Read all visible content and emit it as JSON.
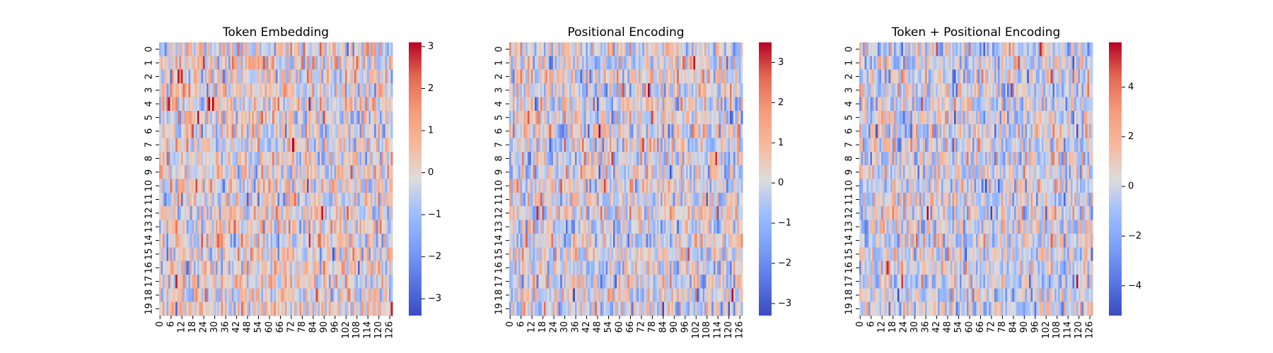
{
  "chart_data": [
    {
      "type": "heatmap",
      "title": "Token Embedding",
      "rows": 20,
      "cols": 128,
      "x_tick_labels": [
        "0",
        "6",
        "12",
        "18",
        "24",
        "30",
        "36",
        "42",
        "48",
        "54",
        "60",
        "66",
        "72",
        "78",
        "84",
        "90",
        "96",
        "102",
        "108",
        "114",
        "120",
        "126"
      ],
      "y_tick_labels": [
        "0",
        "1",
        "2",
        "3",
        "4",
        "5",
        "6",
        "7",
        "8",
        "9",
        "10",
        "11",
        "12",
        "13",
        "14",
        "15",
        "16",
        "17",
        "18",
        "19"
      ],
      "colormap": "coolwarm",
      "vmin": -3.4,
      "vmax": 3.1,
      "colorbar_ticks": [
        -3,
        -2,
        -1,
        0,
        1,
        2,
        3
      ],
      "colorbar_tick_labels": [
        "−3",
        "−2",
        "−1",
        "0",
        "1",
        "2",
        "3"
      ],
      "seed": 11
    },
    {
      "type": "heatmap",
      "title": "Positional Encoding",
      "rows": 20,
      "cols": 128,
      "x_tick_labels": [
        "0",
        "6",
        "12",
        "18",
        "24",
        "30",
        "36",
        "42",
        "48",
        "54",
        "60",
        "66",
        "72",
        "78",
        "84",
        "90",
        "96",
        "102",
        "108",
        "114",
        "120",
        "126"
      ],
      "y_tick_labels": [
        "0",
        "1",
        "2",
        "3",
        "4",
        "5",
        "6",
        "7",
        "8",
        "9",
        "10",
        "11",
        "12",
        "13",
        "14",
        "15",
        "16",
        "17",
        "18",
        "19"
      ],
      "colormap": "coolwarm",
      "vmin": -3.3,
      "vmax": 3.5,
      "colorbar_ticks": [
        -3,
        -2,
        -1,
        0,
        1,
        2,
        3
      ],
      "colorbar_tick_labels": [
        "−3",
        "−2",
        "−1",
        "0",
        "1",
        "2",
        "3"
      ],
      "seed": 23
    },
    {
      "type": "heatmap",
      "title": "Token + Positional Encoding",
      "rows": 20,
      "cols": 128,
      "x_tick_labels": [
        "0",
        "6",
        "12",
        "18",
        "24",
        "30",
        "36",
        "42",
        "48",
        "54",
        "60",
        "66",
        "72",
        "78",
        "84",
        "90",
        "96",
        "102",
        "108",
        "114",
        "120",
        "126"
      ],
      "y_tick_labels": [
        "0",
        "1",
        "2",
        "3",
        "4",
        "5",
        "6",
        "7",
        "8",
        "9",
        "10",
        "11",
        "12",
        "13",
        "14",
        "15",
        "16",
        "17",
        "18",
        "19"
      ],
      "colormap": "coolwarm",
      "vmin": -5.2,
      "vmax": 5.8,
      "colorbar_ticks": [
        -4,
        -2,
        0,
        2,
        4
      ],
      "colorbar_tick_labels": [
        "−4",
        "−2",
        "0",
        "2",
        "4"
      ],
      "seed": 37
    }
  ]
}
